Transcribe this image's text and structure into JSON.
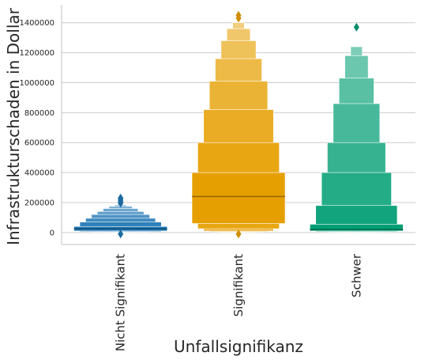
{
  "chart_data": {
    "type": "boxen",
    "title": "",
    "xlabel": "Unfallsignifikanz",
    "ylabel": "Infrastrukturschaden in Dollar",
    "ylim": [
      -80000,
      1520000
    ],
    "yticks": [
      0,
      200000,
      400000,
      600000,
      800000,
      1000000,
      1200000,
      1400000
    ],
    "ytick_labels": [
      "0",
      "200000",
      "400000",
      "600000",
      "800000",
      "1000000",
      "1200000",
      "1400000"
    ],
    "grid": "horizontal",
    "legend": "none",
    "categories": [
      {
        "name": "Nicht Signifikant",
        "color": "#1f77b4",
        "median": 25000,
        "boxes": [
          [
            10000,
            40000
          ],
          [
            5000,
            70000
          ],
          [
            2000,
            95000
          ],
          [
            1000,
            120000
          ],
          [
            500,
            140000
          ],
          [
            200,
            160000
          ],
          [
            100,
            175000
          ],
          [
            50,
            185000
          ]
        ],
        "outliers": [
          195000,
          205000,
          215000,
          225000,
          230000,
          -10000
        ]
      },
      {
        "name": "Signifikant",
        "color": "#e69f00",
        "median": 240000,
        "boxes": [
          [
            60000,
            400000
          ],
          [
            25000,
            600000
          ],
          [
            10000,
            820000
          ],
          [
            5000,
            1010000
          ],
          [
            2000,
            1160000
          ],
          [
            1000,
            1280000
          ],
          [
            500,
            1360000
          ],
          [
            200,
            1400000
          ]
        ],
        "outliers": [
          1430000,
          1450000,
          -10000
        ]
      },
      {
        "name": "Schwer",
        "color": "#009e73",
        "median": 20000,
        "boxes": [
          [
            10000,
            55000
          ],
          [
            5000,
            180000
          ],
          [
            2000,
            400000
          ],
          [
            1000,
            600000
          ],
          [
            500,
            860000
          ],
          [
            200,
            1030000
          ],
          [
            100,
            1180000
          ],
          [
            50,
            1240000
          ]
        ],
        "outliers": [
          1370000
        ]
      }
    ]
  }
}
